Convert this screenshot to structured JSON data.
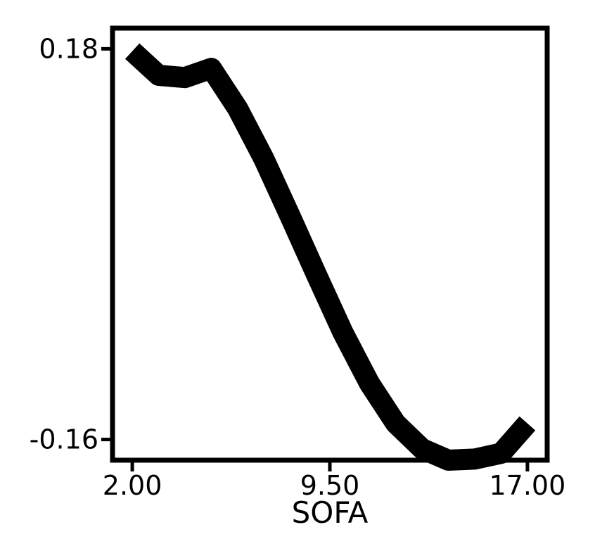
{
  "chart_data": {
    "type": "line",
    "title": "",
    "xlabel": "SOFA",
    "ylabel": "",
    "xlim": [
      1.25,
      17.75
    ],
    "ylim": [
      -0.178,
      0.198
    ],
    "x_ticks": [
      {
        "value": 2.0,
        "label": "2.00"
      },
      {
        "value": 9.5,
        "label": "9.50"
      },
      {
        "value": 17.0,
        "label": "17.00"
      }
    ],
    "y_ticks": [
      {
        "value": 0.18,
        "label": "0.18"
      },
      {
        "value": -0.16,
        "label": "-0.16"
      }
    ],
    "grid": false,
    "legend": "none",
    "series": [
      {
        "color": "#000000",
        "x": [
          2.0,
          3.0,
          4.0,
          5.0,
          6.0,
          7.0,
          8.0,
          9.0,
          10.0,
          11.0,
          12.0,
          13.0,
          14.0,
          15.0,
          16.0,
          17.0
        ],
        "y": [
          0.178,
          0.157,
          0.155,
          0.163,
          0.128,
          0.084,
          0.034,
          -0.017,
          -0.067,
          -0.111,
          -0.146,
          -0.168,
          -0.178,
          -0.177,
          -0.172,
          -0.146
        ]
      }
    ]
  }
}
